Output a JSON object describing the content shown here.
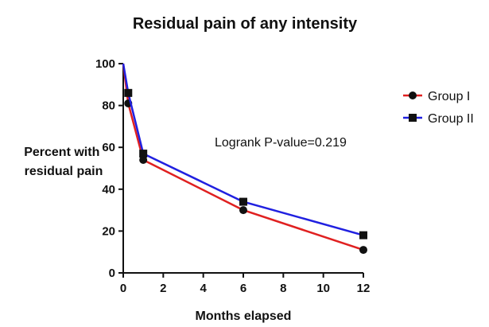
{
  "chart_data": {
    "type": "line",
    "title": "Residual pain of any intensity",
    "xlabel": "Months elapsed",
    "ylabel_lines": [
      "Percent with",
      "residual pain"
    ],
    "xlim": [
      0,
      12
    ],
    "ylim": [
      0,
      100
    ],
    "x_ticks": [
      0,
      2,
      4,
      6,
      8,
      10,
      12
    ],
    "y_ticks": [
      0,
      20,
      40,
      60,
      80,
      100
    ],
    "grid": false,
    "legend_position": "top-right",
    "annotation": "Logrank P-value=0.219",
    "series": [
      {
        "name": "Group I",
        "color": "#e02020",
        "marker": "circle",
        "points": [
          {
            "x": 0,
            "y": 100
          },
          {
            "x": 0.25,
            "y": 81
          },
          {
            "x": 1,
            "y": 54
          },
          {
            "x": 6,
            "y": 30
          },
          {
            "x": 12,
            "y": 11
          }
        ]
      },
      {
        "name": "Group II",
        "color": "#2020e0",
        "marker": "square",
        "points": [
          {
            "x": 0,
            "y": 100
          },
          {
            "x": 0.25,
            "y": 86
          },
          {
            "x": 1,
            "y": 57
          },
          {
            "x": 6,
            "y": 34
          },
          {
            "x": 12,
            "y": 18
          }
        ]
      }
    ]
  }
}
